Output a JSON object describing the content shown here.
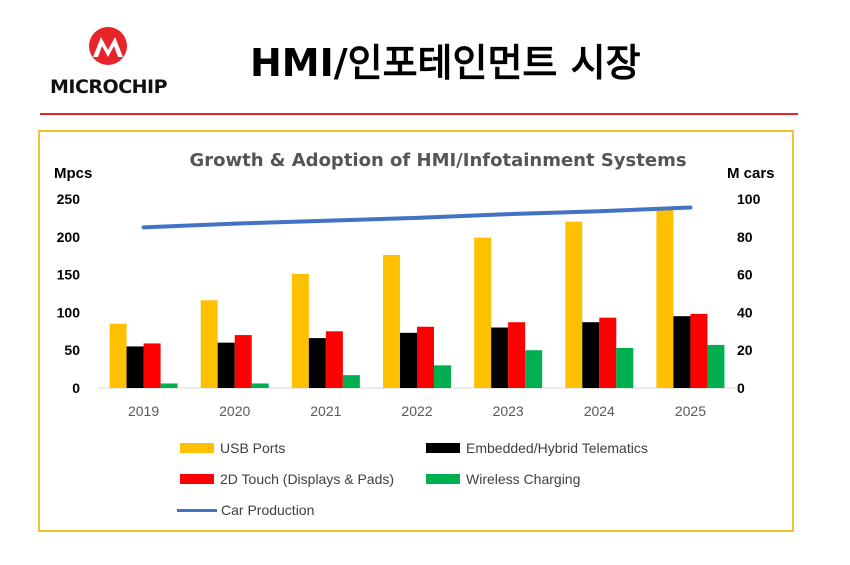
{
  "header": {
    "logo_text": "MICROCHIP",
    "title": "HMI/인포테인먼트 시장"
  },
  "colors": {
    "accent_red": "#e8242b",
    "frame": "#f2c230"
  },
  "chart_data": {
    "type": "bar",
    "title": "Growth & Adoption of HMI/Infotainment Systems",
    "ylabel": "Mpcs",
    "y2label": "M cars",
    "ylim": [
      0,
      250
    ],
    "y2lim": [
      0,
      100
    ],
    "yticks": [
      0,
      50,
      100,
      150,
      200,
      250
    ],
    "y2ticks": [
      0,
      20,
      40,
      60,
      80,
      100
    ],
    "categories": [
      "2019",
      "2020",
      "2021",
      "2022",
      "2023",
      "2024",
      "2025"
    ],
    "grid": false,
    "legend_position": "bottom",
    "series": [
      {
        "name": "USB Ports",
        "type": "bar",
        "axis": "left",
        "color": "#ffc000",
        "values": [
          85,
          116,
          151,
          176,
          199,
          220,
          238
        ]
      },
      {
        "name": "Embedded/Hybrid Telematics",
        "type": "bar",
        "axis": "left",
        "color": "#000000",
        "values": [
          55,
          60,
          66,
          73,
          80,
          87,
          95
        ]
      },
      {
        "name": "2D Touch (Displays & Pads)",
        "type": "bar",
        "axis": "left",
        "color": "#ff0000",
        "values": [
          59,
          70,
          75,
          81,
          87,
          93,
          98
        ]
      },
      {
        "name": "Wireless Charging",
        "type": "bar",
        "axis": "left",
        "color": "#00b050",
        "values": [
          6,
          6,
          17,
          30,
          50,
          53,
          57
        ]
      },
      {
        "name": "Car Production",
        "type": "line",
        "axis": "right",
        "color": "#4472c4",
        "values": [
          85,
          87,
          88.5,
          90,
          92,
          93.5,
          95.5
        ]
      }
    ]
  }
}
